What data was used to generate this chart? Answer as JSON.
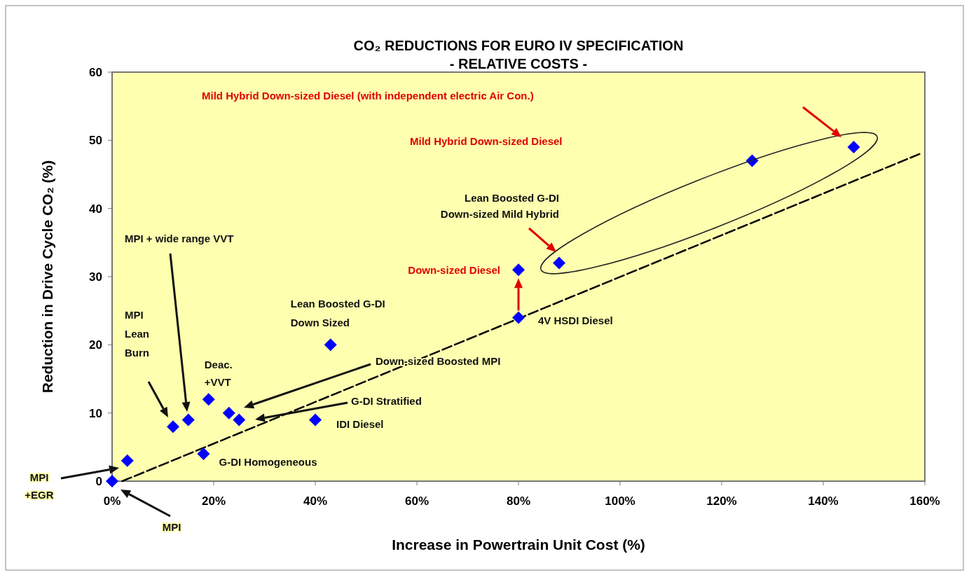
{
  "chart_data": {
    "type": "scatter",
    "title": "CO₂ REDUCTIONS FOR EURO IV SPECIFICATION",
    "subtitle": "- RELATIVE COSTS -",
    "xlabel": "Increase in Powertrain Unit Cost (%)",
    "ylabel": "Reduction in Drive Cycle CO₂ (%)",
    "xlim": [
      0,
      160
    ],
    "ylim": [
      0,
      60
    ],
    "xticks": [
      {
        "value": 0,
        "label": "0%"
      },
      {
        "value": 20,
        "label": "20%"
      },
      {
        "value": 40,
        "label": "40%"
      },
      {
        "value": 60,
        "label": "60%"
      },
      {
        "value": 80,
        "label": "80%"
      },
      {
        "value": 100,
        "label": "100%"
      },
      {
        "value": 120,
        "label": "120%"
      },
      {
        "value": 140,
        "label": "140%"
      },
      {
        "value": 160,
        "label": "160%"
      }
    ],
    "yticks": [
      0,
      10,
      20,
      30,
      40,
      50,
      60
    ],
    "marker": "diamond",
    "series": [
      {
        "type": "line",
        "color": "#000000",
        "line_style": "dashed",
        "marker": "none",
        "x": [
          2,
          159
        ],
        "values": [
          0,
          48
        ]
      },
      {
        "type": "scatter",
        "color": "#0000ff",
        "x": [
          0,
          3,
          12,
          15,
          19,
          23,
          25,
          18,
          40,
          43,
          80,
          80,
          88,
          126,
          146
        ],
        "values": [
          0,
          3,
          8,
          9,
          12,
          10,
          9,
          4,
          9,
          20,
          24,
          31,
          32,
          47,
          49
        ]
      }
    ],
    "annotations": [
      "Mild Hybrid Down-sized Diesel (with independent electric Air Con.)",
      "Mild Hybrid Down-sized Diesel",
      "Lean Boosted G-DI\nDown-sized Mild Hybrid",
      {
        "text": "Down-sized Diesel",
        "x": 80,
        "y": 31
      },
      {
        "text": "4V HSDI Diesel",
        "x": 80,
        "y": 24
      },
      {
        "text": "Lean Boosted G-DI\nDown Sized",
        "x": 43,
        "y": 20
      },
      "Down-sized Boosted  MPI",
      "G-DI Stratified",
      {
        "text": "IDI Diesel",
        "x": 40,
        "y": 9
      },
      {
        "text": "G-DI Homogeneous",
        "x": 18,
        "y": 4
      },
      {
        "text": "Deac.\n+VVT",
        "x": 19,
        "y": 12
      },
      "MPI\nLean\nBurn",
      "MPI + wide range VVT",
      "MPI\n+EGR",
      "MPI"
    ]
  }
}
